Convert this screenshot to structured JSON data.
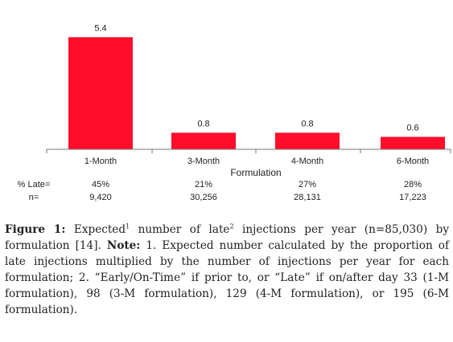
{
  "chart_data": {
    "type": "bar",
    "categories": [
      "1-Month",
      "3-Month",
      "4-Month",
      "6-Month"
    ],
    "values": [
      5.4,
      0.8,
      0.8,
      0.6
    ],
    "data_labels": [
      "5.4",
      "0.8",
      "0.8",
      "0.6"
    ],
    "xlabel": "Formulation",
    "ylabel": "",
    "ylim": [
      0,
      5.8
    ],
    "grid": false,
    "bar_color": "#ff0d2a",
    "rows": [
      {
        "label": "% Late=",
        "values": [
          "45%",
          "21%",
          "27%",
          "28%"
        ]
      },
      {
        "label": "n=",
        "values": [
          "9,420",
          "30,256",
          "28,131",
          "17,223"
        ]
      }
    ]
  },
  "caption": {
    "label": "Figure 1:",
    "text_1": " Expected",
    "sup_1": "1",
    "text_2": " number of late",
    "sup_2": "2",
    "text_3": " injections per year (n=85,030) by formulation [14]. ",
    "note_label": "Note:",
    "note_text": " 1. Expected number calculated by the proportion of late injections multiplied by the number of injections per year for each formulation; 2. “Early/On-Time” if prior to, or “Late” if on/after day 33 (1-M formulation), 98 (3-M formulation), 129 (4-M formulation), or 195 (6-M formulation)."
  }
}
